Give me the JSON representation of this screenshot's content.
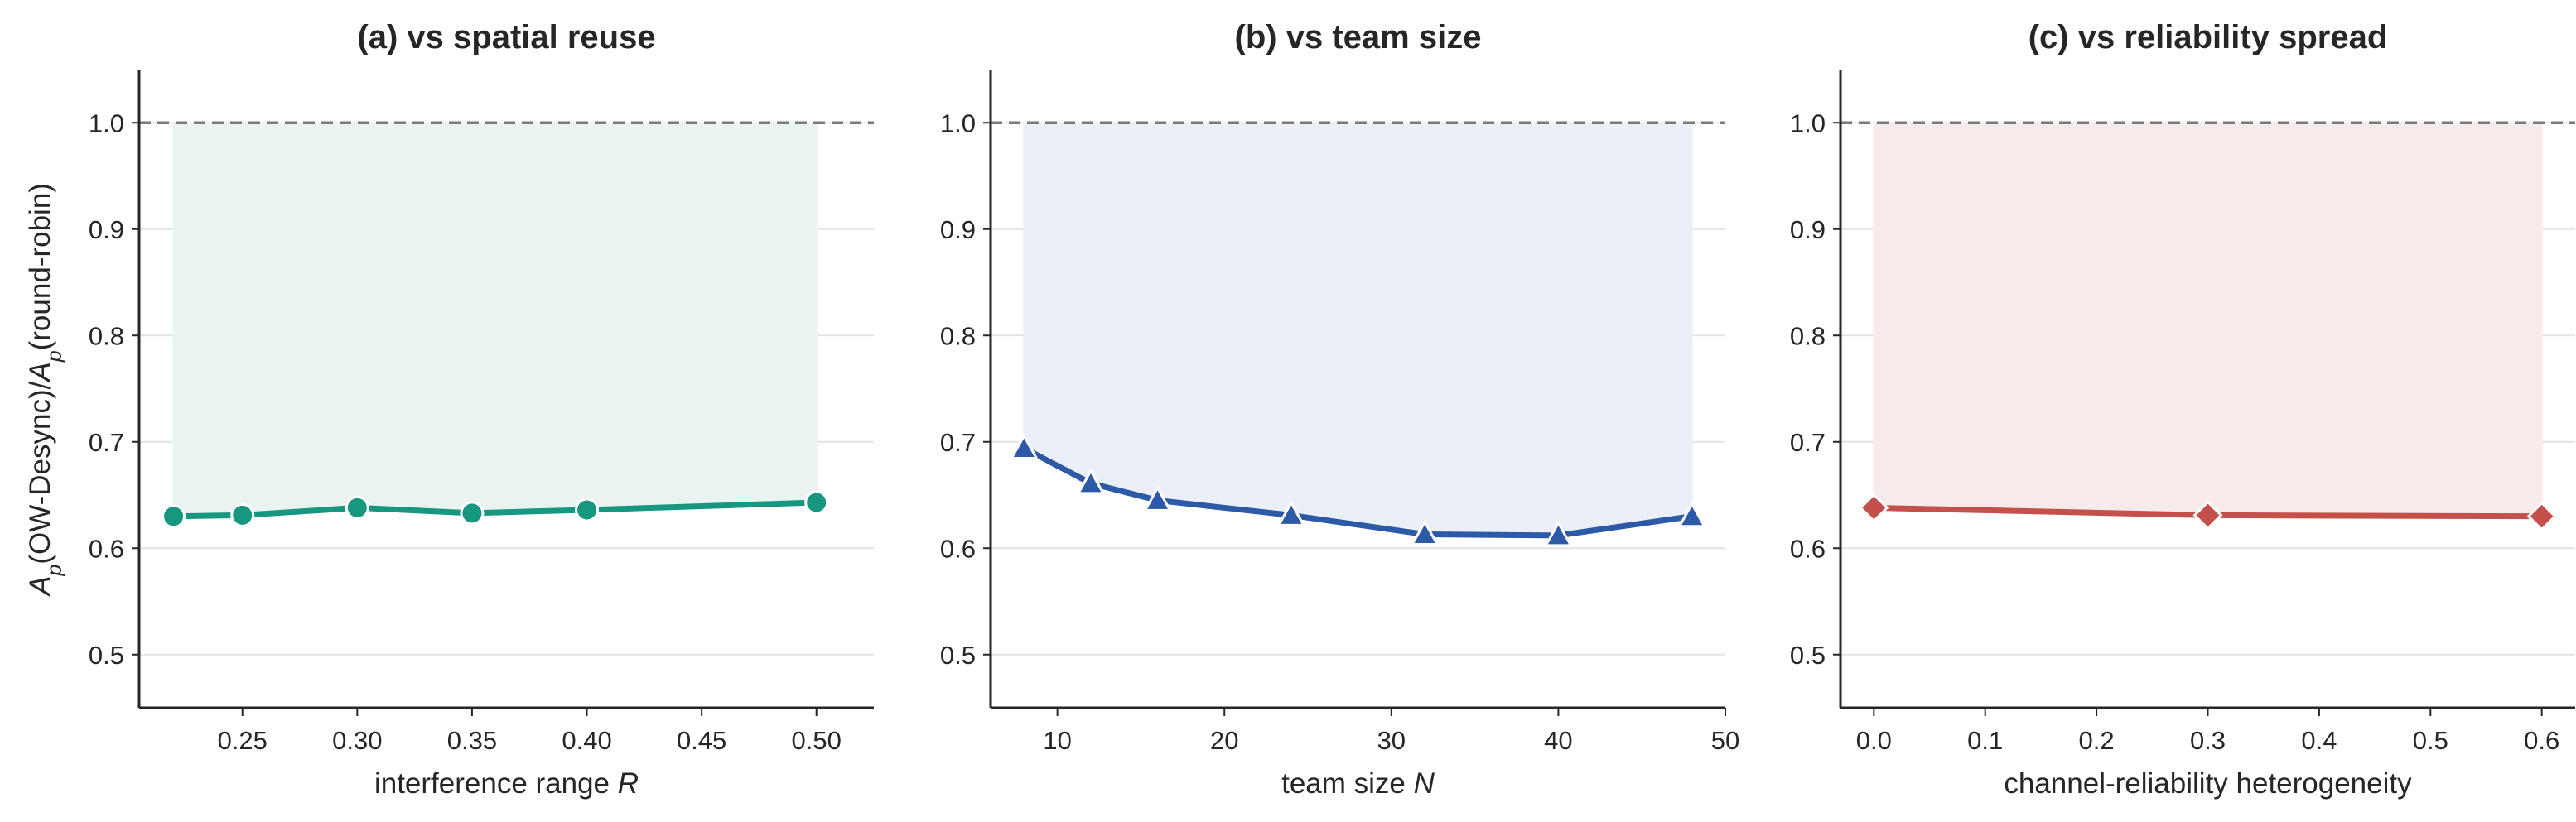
{
  "figure": {
    "ylabel_parts": [
      "A",
      "p",
      "(OW-Desync)/",
      "A",
      "p",
      "(round-robin)"
    ],
    "reference_line": 1.0,
    "ytick_labels": [
      "0.5",
      "0.6",
      "0.7",
      "0.8",
      "0.9",
      "1.0"
    ]
  },
  "chart_data": [
    {
      "type": "line",
      "title": "(a) vs spatial reuse",
      "xlabel_text": "interference range ",
      "xlabel_var": "R",
      "x": [
        0.22,
        0.25,
        0.3,
        0.35,
        0.4,
        0.5
      ],
      "values": [
        0.63,
        0.631,
        0.638,
        0.633,
        0.636,
        0.643
      ],
      "xlim": [
        0.205,
        0.525
      ],
      "ylim": [
        0.45,
        1.05
      ],
      "xticks": [
        0.25,
        0.3,
        0.35,
        0.4,
        0.45,
        0.5
      ],
      "xtick_labels": [
        "0.25",
        "0.30",
        "0.35",
        "0.40",
        "0.45",
        "0.50"
      ],
      "marker": "circle",
      "color": "#17977f",
      "fill_color": "#e9f4f1",
      "grid": true
    },
    {
      "type": "line",
      "title": "(b) vs team size",
      "xlabel_text": "team size ",
      "xlabel_var": "N",
      "x": [
        8,
        12,
        16,
        24,
        32,
        40,
        48
      ],
      "values": [
        0.694,
        0.661,
        0.645,
        0.631,
        0.613,
        0.612,
        0.63
      ],
      "xlim": [
        6,
        50
      ],
      "ylim": [
        0.45,
        1.05
      ],
      "xticks": [
        10,
        20,
        30,
        40,
        50
      ],
      "xtick_labels": [
        "10",
        "20",
        "30",
        "40",
        "50"
      ],
      "marker": "triangle",
      "color": "#2c5aa6",
      "fill_color": "#eaeff8",
      "grid": true
    },
    {
      "type": "line",
      "title": "(c) vs reliability spread",
      "xlabel_text": "channel-reliability heterogeneity",
      "xlabel_var": "",
      "x": [
        0.0,
        0.3,
        0.6
      ],
      "values": [
        0.638,
        0.631,
        0.63
      ],
      "xlim": [
        -0.03,
        0.63
      ],
      "ylim": [
        0.45,
        1.05
      ],
      "xticks": [
        0.0,
        0.1,
        0.2,
        0.3,
        0.4,
        0.5,
        0.6
      ],
      "xtick_labels": [
        "0.0",
        "0.1",
        "0.2",
        "0.3",
        "0.4",
        "0.5",
        "0.6"
      ],
      "marker": "diamond",
      "color": "#c3504b",
      "fill_color": "#f7eaea",
      "grid": true
    }
  ]
}
